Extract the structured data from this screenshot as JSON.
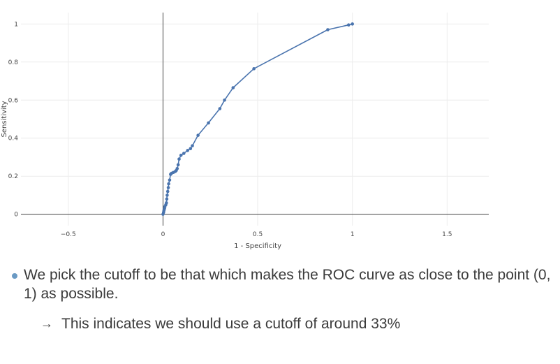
{
  "chart_data": {
    "type": "line",
    "title": "",
    "xlabel": "1 - Specificity",
    "ylabel": "Sensitivity",
    "xlim": [
      -0.75,
      1.72
    ],
    "ylim": [
      -0.06,
      1.06
    ],
    "x_ticks": [
      {
        "value": -0.5,
        "label": "−0.5"
      },
      {
        "value": 0,
        "label": "0"
      },
      {
        "value": 0.5,
        "label": "0.5"
      },
      {
        "value": 1,
        "label": "1"
      },
      {
        "value": 1.5,
        "label": "1.5"
      }
    ],
    "y_ticks": [
      {
        "value": 0,
        "label": "0"
      },
      {
        "value": 0.2,
        "label": "0.2"
      },
      {
        "value": 0.4,
        "label": "0.4"
      },
      {
        "value": 0.6,
        "label": "0.6"
      },
      {
        "value": 0.8,
        "label": "0.8"
      },
      {
        "value": 1,
        "label": "1"
      }
    ],
    "grid": true,
    "series": [
      {
        "color": "#4a74ae",
        "points": [
          [
            0.0,
            0.0
          ],
          [
            0.003,
            0.01
          ],
          [
            0.005,
            0.02
          ],
          [
            0.008,
            0.03
          ],
          [
            0.01,
            0.04
          ],
          [
            0.015,
            0.05
          ],
          [
            0.018,
            0.06
          ],
          [
            0.02,
            0.08
          ],
          [
            0.022,
            0.1
          ],
          [
            0.025,
            0.12
          ],
          [
            0.028,
            0.14
          ],
          [
            0.03,
            0.16
          ],
          [
            0.035,
            0.18
          ],
          [
            0.04,
            0.21
          ],
          [
            0.045,
            0.215
          ],
          [
            0.055,
            0.22
          ],
          [
            0.065,
            0.225
          ],
          [
            0.07,
            0.23
          ],
          [
            0.075,
            0.24
          ],
          [
            0.08,
            0.26
          ],
          [
            0.085,
            0.29
          ],
          [
            0.095,
            0.31
          ],
          [
            0.11,
            0.32
          ],
          [
            0.13,
            0.335
          ],
          [
            0.145,
            0.345
          ],
          [
            0.155,
            0.36
          ],
          [
            0.185,
            0.415
          ],
          [
            0.24,
            0.48
          ],
          [
            0.3,
            0.555
          ],
          [
            0.325,
            0.6
          ],
          [
            0.37,
            0.665
          ],
          [
            0.48,
            0.765
          ],
          [
            0.87,
            0.97
          ],
          [
            0.98,
            0.995
          ],
          [
            1.0,
            1.0
          ]
        ]
      }
    ]
  },
  "notes": {
    "bullet_text": "We pick the cutoff to be that which makes the ROC curve as close to the point (0, 1) as possible.",
    "sub_bullet_text": "This indicates we should use a cutoff of around 33%",
    "arrow_glyph": "→",
    "bullet_color": "#6a9ac4"
  }
}
